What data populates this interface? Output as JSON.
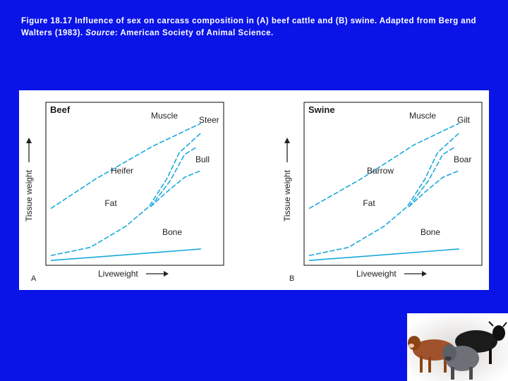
{
  "caption": {
    "part1": "Figure 18.17     Influence of sex on carcass composition in (A) beef cattle and (B) swine. Adapted from Berg and Walters (1983). ",
    "source_word": "Source",
    "part2": ": American Society of Animal Science."
  },
  "colors": {
    "background": "#0a14e6",
    "curve": "#1aa9dc",
    "panel": "#ffffff",
    "caption_text": "#ffffff"
  },
  "chart_data": [
    {
      "type": "line",
      "panel_label": "A",
      "title": "Beef",
      "xlabel": "Liveweight",
      "ylabel": "Tissue weight",
      "grid": false,
      "xlim": [
        0,
        10
      ],
      "ylim": [
        0,
        10
      ],
      "curve_labels": {
        "muscle": "Muscle",
        "high": "Steer",
        "low": "Bull",
        "mid": "Heifer",
        "fat": "Fat",
        "bone": "Bone"
      },
      "series": [
        {
          "id": "muscle",
          "style": "dashed",
          "x": [
            0.3,
            2.8,
            6.0,
            8.7
          ],
          "y": [
            3.5,
            5.3,
            7.3,
            8.7
          ]
        },
        {
          "id": "fat_high",
          "style": "dashed",
          "x": [
            0.3,
            2.5,
            4.5,
            5.8,
            6.8,
            7.5,
            8.7
          ],
          "y": [
            0.6,
            1.1,
            2.4,
            3.6,
            5.3,
            6.9,
            8.1
          ]
        },
        {
          "id": "fat_mid",
          "style": "dashed",
          "x": [
            5.9,
            7.0,
            7.8,
            8.4
          ],
          "y": [
            3.6,
            5.2,
            6.8,
            7.2
          ]
        },
        {
          "id": "fat_low",
          "style": "dashed",
          "x": [
            5.9,
            6.8,
            7.8,
            8.7
          ],
          "y": [
            3.6,
            4.5,
            5.4,
            5.8
          ]
        },
        {
          "id": "bone",
          "style": "solid",
          "x": [
            0.3,
            4.0,
            8.7
          ],
          "y": [
            0.3,
            0.6,
            1.0
          ]
        }
      ]
    },
    {
      "type": "line",
      "panel_label": "B",
      "title": "Swine",
      "xlabel": "Liveweight",
      "ylabel": "Tissue weight",
      "grid": false,
      "xlim": [
        0,
        10
      ],
      "ylim": [
        0,
        10
      ],
      "curve_labels": {
        "muscle": "Muscle",
        "high": "Gilt",
        "low": "Boar",
        "mid": "Barrow",
        "fat": "Fat",
        "bone": "Bone"
      },
      "series": [
        {
          "id": "muscle",
          "style": "dashed",
          "x": [
            0.3,
            3.2,
            6.2,
            8.7
          ],
          "y": [
            3.5,
            5.3,
            7.4,
            8.7
          ]
        },
        {
          "id": "fat_high",
          "style": "dashed",
          "x": [
            0.3,
            2.5,
            4.5,
            5.8,
            6.8,
            7.5,
            8.7
          ],
          "y": [
            0.6,
            1.1,
            2.4,
            3.6,
            5.3,
            6.9,
            8.1
          ]
        },
        {
          "id": "fat_mid",
          "style": "dashed",
          "x": [
            5.9,
            7.0,
            7.8,
            8.4
          ],
          "y": [
            3.6,
            5.2,
            6.8,
            7.2
          ]
        },
        {
          "id": "fat_low",
          "style": "dashed",
          "x": [
            5.9,
            6.8,
            7.8,
            8.7
          ],
          "y": [
            3.6,
            4.5,
            5.4,
            5.8
          ]
        },
        {
          "id": "bone",
          "style": "solid",
          "x": [
            0.3,
            4.0,
            8.7
          ],
          "y": [
            0.3,
            0.6,
            1.0
          ]
        }
      ]
    }
  ]
}
